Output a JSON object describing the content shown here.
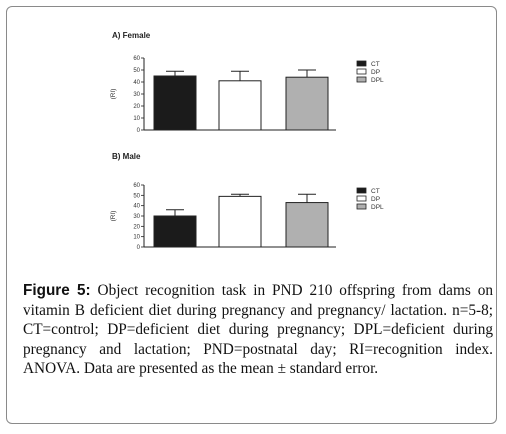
{
  "chart_data": [
    {
      "type": "bar",
      "title": "A) Female",
      "ylabel": "(RI)",
      "categories": [
        "CT",
        "DP",
        "DPL"
      ],
      "series": [
        {
          "values": [
            45,
            41,
            44
          ],
          "errors": [
            4,
            8,
            6
          ]
        }
      ],
      "ylim": [
        0,
        60
      ],
      "yticks": [
        0,
        10,
        20,
        30,
        40,
        50,
        60
      ],
      "colors": [
        "#1b1b1b",
        "#ffffff",
        "#b0b0b0"
      ],
      "legend": [
        "CT",
        "DP",
        "DPL"
      ],
      "legend_position": "right",
      "grid": false
    },
    {
      "type": "bar",
      "title": "B) Male",
      "ylabel": "(RI)",
      "categories": [
        "CT",
        "DP",
        "DPL"
      ],
      "series": [
        {
          "values": [
            30,
            49,
            43
          ],
          "errors": [
            6,
            2,
            8
          ]
        }
      ],
      "ylim": [
        0,
        60
      ],
      "yticks": [
        0,
        10,
        20,
        30,
        40,
        50,
        60
      ],
      "colors": [
        "#1b1b1b",
        "#ffffff",
        "#b0b0b0"
      ],
      "legend": [
        "CT",
        "DP",
        "DPL"
      ],
      "legend_position": "right",
      "grid": false
    }
  ],
  "caption": {
    "label": "Figure 5:",
    "text": "Object recognition task in PND 210 offspring from dams on vitamin B deficient diet during pregnancy and pregnancy/ lactation. n=5-8; CT=control; DP=deficient diet during pregnancy; DPL=deficient during pregnancy and lactation; PND=postnatal day; RI=recognition index. ANOVA. Data are presented as the mean ± standard error."
  }
}
